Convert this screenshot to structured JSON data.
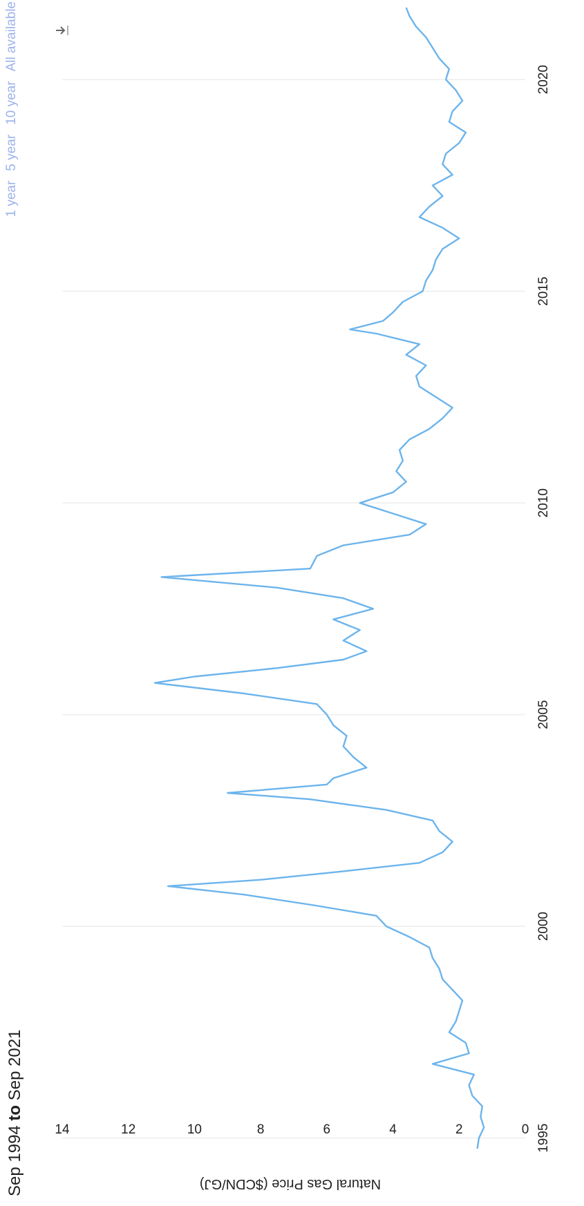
{
  "header": {
    "range_from": "Sep 1994",
    "range_to_word": "to",
    "range_to": "Sep 2021"
  },
  "range_buttons": [
    "1 year",
    "5 year",
    "10 year",
    "All available"
  ],
  "icons": {
    "download": "download-icon"
  },
  "colors": {
    "line": "#6cb4ec",
    "axis_text": "#222222",
    "gridline": "#eeeeee",
    "button_text": "#9db3ea"
  },
  "chart_data": {
    "type": "line",
    "title": "",
    "xlabel": "",
    "ylabel": "Natural Gas Price ($CDN/GJ)",
    "xlim": [
      1994.7,
      2021.7
    ],
    "ylim": [
      0,
      14
    ],
    "x_ticks": [
      "1995",
      "2000",
      "2005",
      "2010",
      "2015",
      "2020"
    ],
    "y_ticks": [
      "0",
      "2",
      "4",
      "6",
      "8",
      "10",
      "12",
      "14"
    ],
    "grid": true,
    "series": [
      {
        "x": [
          1994.75,
          1995.0,
          1995.25,
          1995.5,
          1995.75,
          1996.0,
          1996.25,
          1996.5,
          1996.75,
          1997.0,
          1997.25,
          1997.5,
          1997.75,
          1998.0,
          1998.25,
          1998.5,
          1998.75,
          1999.0,
          1999.25,
          1999.5,
          1999.75,
          2000.0,
          2000.25,
          2000.5,
          2000.75,
          2000.95,
          2001.1,
          2001.3,
          2001.5,
          2001.75,
          2002.0,
          2002.25,
          2002.5,
          2002.75,
          2003.0,
          2003.15,
          2003.35,
          2003.5,
          2003.75,
          2004.0,
          2004.25,
          2004.5,
          2004.75,
          2005.0,
          2005.25,
          2005.5,
          2005.75,
          2005.9,
          2006.1,
          2006.3,
          2006.5,
          2006.75,
          2007.0,
          2007.25,
          2007.5,
          2007.75,
          2008.0,
          2008.25,
          2008.45,
          2008.75,
          2009.0,
          2009.25,
          2009.5,
          2009.75,
          2010.0,
          2010.25,
          2010.5,
          2010.75,
          2011.0,
          2011.25,
          2011.5,
          2011.75,
          2012.0,
          2012.25,
          2012.5,
          2012.75,
          2013.0,
          2013.25,
          2013.5,
          2013.75,
          2014.0,
          2014.1,
          2014.3,
          2014.5,
          2014.75,
          2015.0,
          2015.25,
          2015.5,
          2015.75,
          2016.0,
          2016.25,
          2016.5,
          2016.75,
          2017.0,
          2017.25,
          2017.5,
          2017.75,
          2018.0,
          2018.25,
          2018.5,
          2018.75,
          2019.0,
          2019.25,
          2019.5,
          2019.75,
          2020.0,
          2020.25,
          2020.5,
          2020.75,
          2021.0,
          2021.25,
          2021.5,
          2021.7
        ],
        "y": [
          1.45,
          1.4,
          1.25,
          1.35,
          1.3,
          1.6,
          1.7,
          1.55,
          2.8,
          1.7,
          1.8,
          2.3,
          2.1,
          2.0,
          1.9,
          2.2,
          2.5,
          2.6,
          2.8,
          2.9,
          3.5,
          4.2,
          4.5,
          6.4,
          8.5,
          10.8,
          8.0,
          5.5,
          3.2,
          2.5,
          2.2,
          2.6,
          2.8,
          4.2,
          6.5,
          9.0,
          6.0,
          5.8,
          4.8,
          5.2,
          5.5,
          5.4,
          5.8,
          6.0,
          6.3,
          8.5,
          11.2,
          10.0,
          7.5,
          5.5,
          4.8,
          5.5,
          5.0,
          5.8,
          4.6,
          5.5,
          7.5,
          11.0,
          6.5,
          6.3,
          5.5,
          3.5,
          3.0,
          4.0,
          5.0,
          4.0,
          3.6,
          3.9,
          3.7,
          3.8,
          3.5,
          2.9,
          2.5,
          2.2,
          2.7,
          3.2,
          3.3,
          3.0,
          3.6,
          3.2,
          4.5,
          5.3,
          4.3,
          4.0,
          3.7,
          3.1,
          3.0,
          2.8,
          2.7,
          2.5,
          2.0,
          2.5,
          3.2,
          2.9,
          2.5,
          2.8,
          2.2,
          2.5,
          2.4,
          2.0,
          1.8,
          2.3,
          2.2,
          1.9,
          2.1,
          2.4,
          2.3,
          2.6,
          2.8,
          3.0,
          3.3,
          3.5,
          3.6
        ]
      }
    ]
  }
}
